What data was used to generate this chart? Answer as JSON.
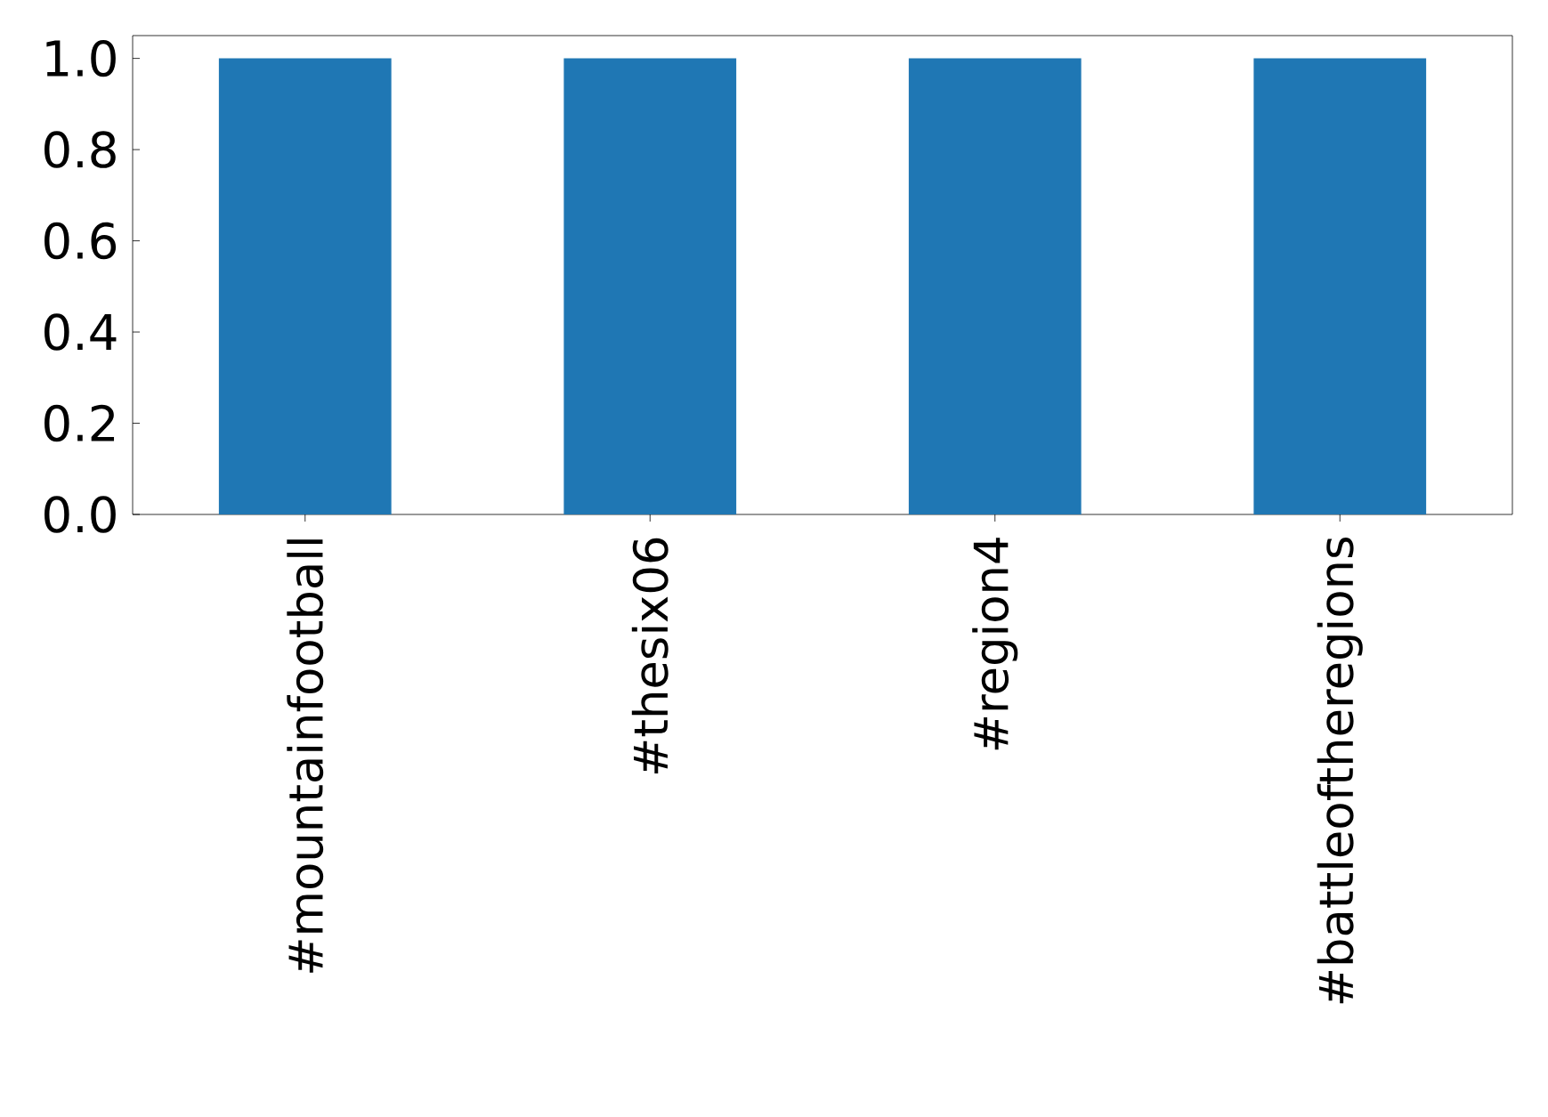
{
  "chart_data": {
    "type": "bar",
    "categories": [
      "#mountainfootball",
      "#thesix06",
      "#region4",
      "#battleoftheregions"
    ],
    "values": [
      1.0,
      1.0,
      1.0,
      1.0
    ],
    "color": "#1f77b4",
    "ylim": [
      0,
      1.05
    ],
    "yticks": [
      {
        "value": 0,
        "label": "0.0"
      },
      0.2,
      0.4,
      0.6,
      0.8,
      {
        "value": 1,
        "label": "1.0"
      }
    ]
  }
}
